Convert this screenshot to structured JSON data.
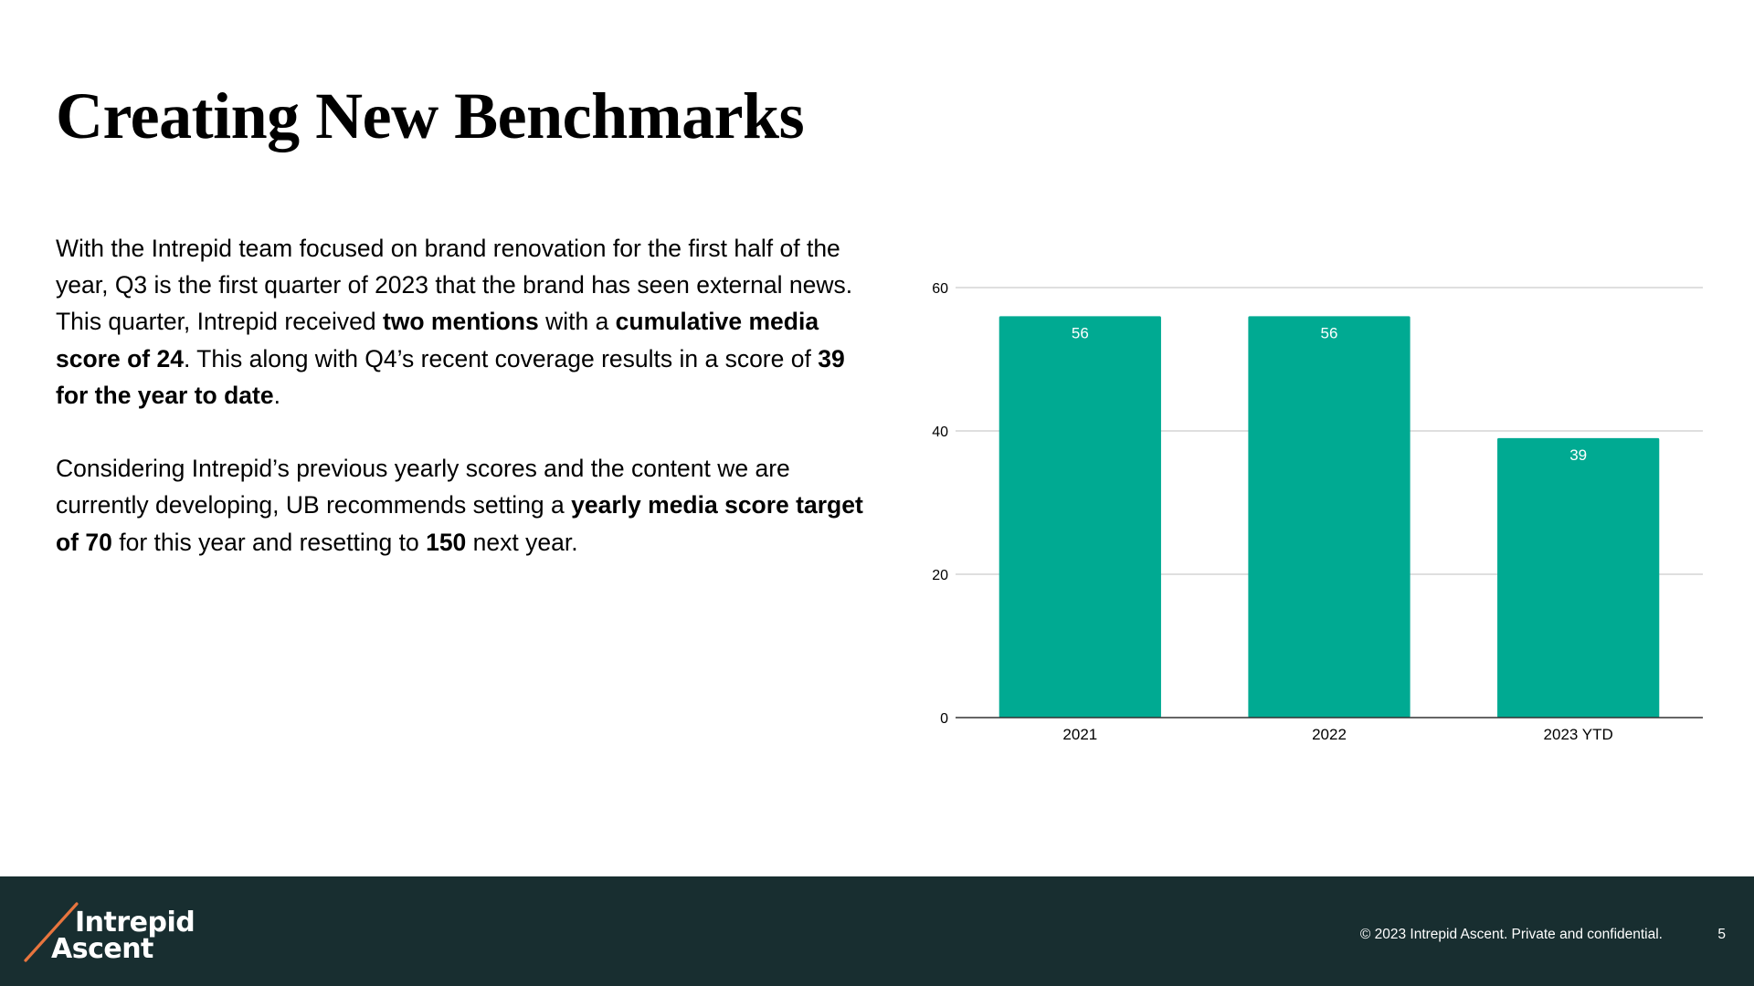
{
  "slide": {
    "title": "Creating New Benchmarks",
    "paragraphs": [
      [
        {
          "t": "With the Intrepid team focused on brand renovation for the first half of the year, Q3 is the first quarter of 2023 that the brand has seen external news. This quarter, Intrepid received ",
          "b": false
        },
        {
          "t": "two mentions",
          "b": true
        },
        {
          "t": " with a ",
          "b": false
        },
        {
          "t": "cumulative media score of 24",
          "b": true
        },
        {
          "t": ". This along with Q4’s recent coverage results in a score of ",
          "b": false
        },
        {
          "t": "39 for the year to date",
          "b": true
        },
        {
          "t": ".",
          "b": false
        }
      ],
      [
        {
          "t": "Considering Intrepid’s previous yearly scores and the content we are currently developing, UB recommends setting a ",
          "b": false
        },
        {
          "t": "yearly media score target of 70",
          "b": true
        },
        {
          "t": " for this year and resetting to ",
          "b": false
        },
        {
          "t": "150",
          "b": true
        },
        {
          "t": " next year.",
          "b": false
        }
      ]
    ]
  },
  "chart_data": {
    "type": "bar",
    "categories": [
      "2021",
      "2022",
      "2023 YTD"
    ],
    "values": [
      56,
      56,
      39
    ],
    "data_labels": [
      "56",
      "56",
      "39"
    ],
    "ylim": [
      0,
      60
    ],
    "yticks": [
      0,
      20,
      40,
      60
    ],
    "ytick_labels": [
      "0",
      "20",
      "40",
      "60"
    ],
    "title": "",
    "xlabel": "",
    "ylabel": "",
    "grid": true,
    "legend": "none",
    "bar_color": "#00aa92",
    "gridline_color": "#cccccc",
    "label_color": "#ffffff"
  },
  "footer": {
    "logo_line1": "Intrepid",
    "logo_line2": "Ascent",
    "copyright": "© 2023 Intrepid Ascent. Private and confidential.",
    "page_number": "5",
    "background": "#182e30",
    "accent": "#e8753e"
  }
}
